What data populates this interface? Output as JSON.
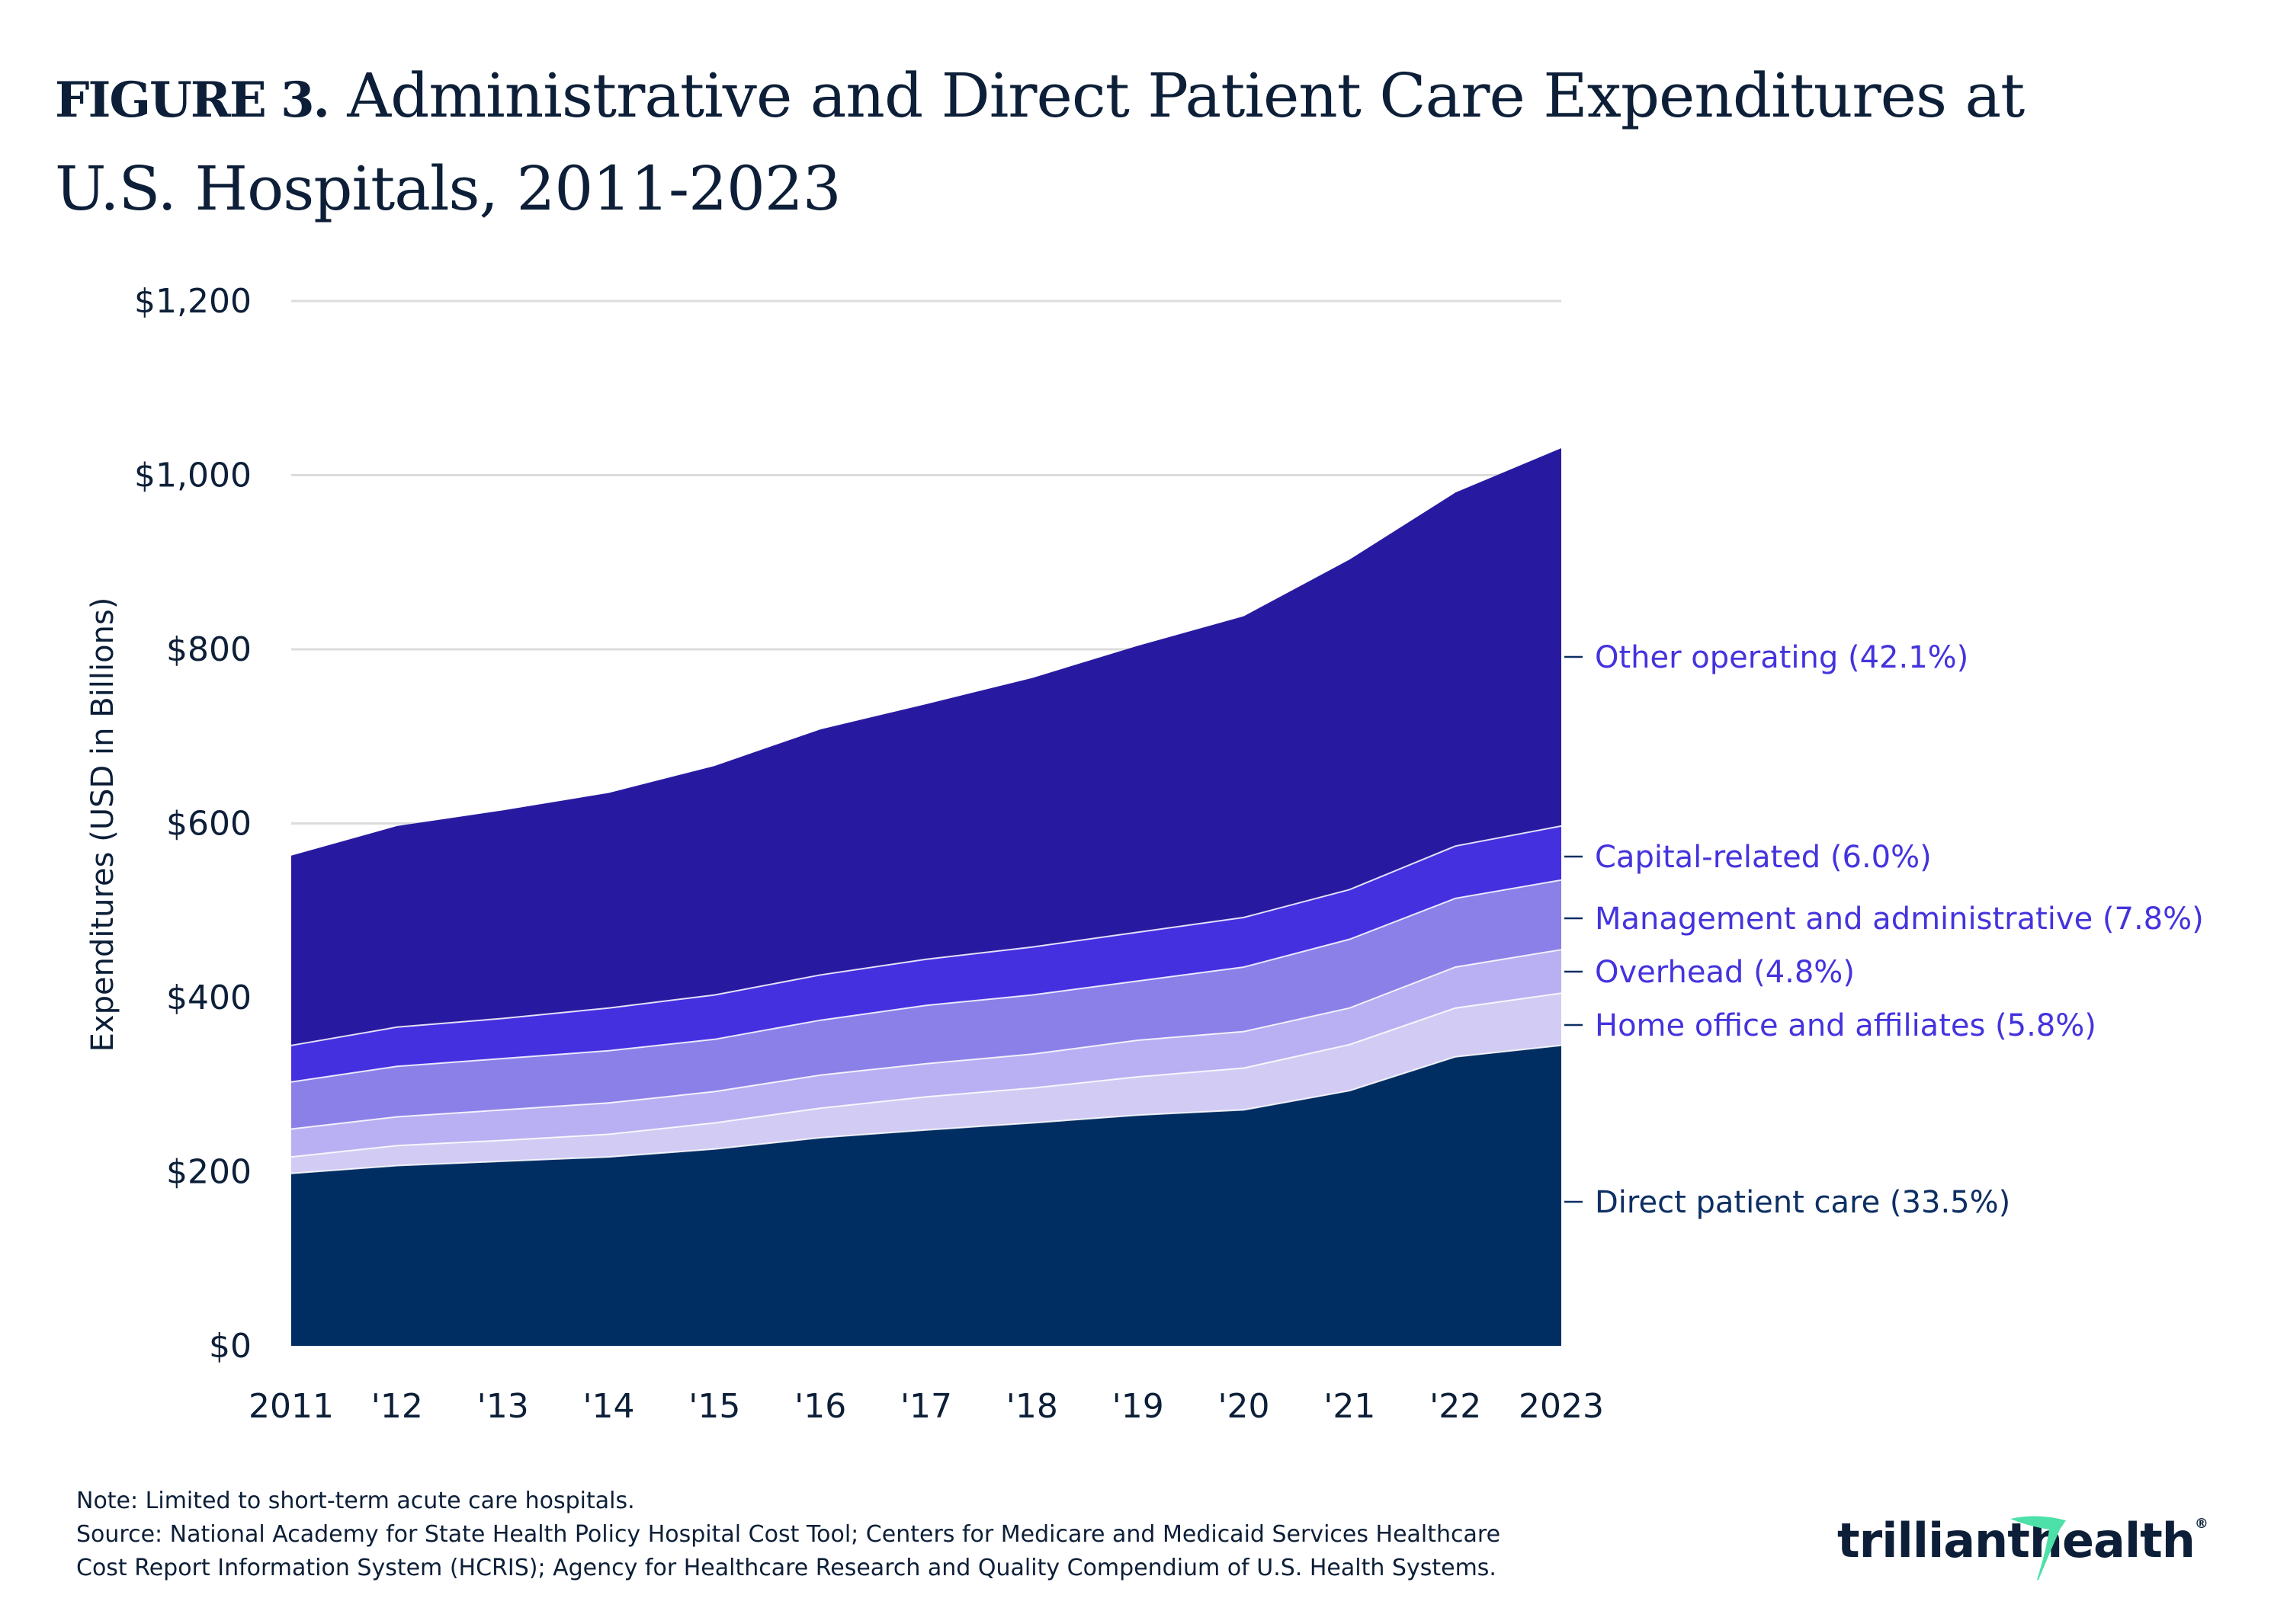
{
  "title": {
    "figure_label": "FIGURE 3.",
    "line1": " Administrative and Direct Patient Care Expenditures at",
    "line2": "U.S. Hospitals, 2011-2023"
  },
  "chart_data": {
    "type": "area",
    "stacked": true,
    "title": "Administrative and Direct Patient Care Expenditures at U.S. Hospitals, 2011-2023",
    "xlabel": "",
    "ylabel": "Expenditures (USD in Billions)",
    "ylim": [
      0,
      1200
    ],
    "yticks": [
      0,
      200,
      400,
      600,
      800,
      1000,
      1200
    ],
    "ytick_labels": [
      "$0",
      "$200",
      "$400",
      "$600",
      "$800",
      "$1,000",
      "$1,200"
    ],
    "categories": [
      "2011",
      "'12",
      "'13",
      "'14",
      "'15",
      "'16",
      "'17",
      "'18",
      "'19",
      "'20",
      "'21",
      "'22",
      "2023"
    ],
    "grid": true,
    "legend": "right (inline labels at series end)",
    "series": [
      {
        "name": "Direct patient care",
        "share_label": "Direct patient care (33.5%)",
        "color": "#002d62",
        "label_color": "#0d2f63",
        "values": [
          198,
          207,
          212,
          217,
          226,
          239,
          248,
          256,
          265,
          271,
          293,
          332,
          345
        ]
      },
      {
        "name": "Home office and affiliates",
        "share_label": "Home office and affiliates (5.8%)",
        "color": "#d2ccf4",
        "label_color": "#4433dd",
        "values": [
          19,
          23,
          24,
          26,
          30,
          34,
          38,
          40,
          44,
          48,
          53,
          56,
          60
        ]
      },
      {
        "name": "Overhead",
        "share_label": "Overhead (4.8%)",
        "color": "#b8b0f2",
        "label_color": "#4433dd",
        "values": [
          32,
          33,
          35,
          36,
          36,
          38,
          38,
          39,
          42,
          42,
          42,
          47,
          50
        ]
      },
      {
        "name": "Management and administrative",
        "share_label": "Management and administrative (7.8%)",
        "color": "#8b80e8",
        "label_color": "#4433dd",
        "values": [
          54,
          58,
          59,
          60,
          60,
          63,
          67,
          68,
          68,
          74,
          79,
          79,
          80
        ]
      },
      {
        "name": "Capital-related",
        "share_label": "Capital-related (6.0%)",
        "color": "#4530e0",
        "label_color": "#4433dd",
        "values": [
          42,
          45,
          46,
          49,
          51,
          52,
          53,
          55,
          56,
          57,
          57,
          60,
          62
        ]
      },
      {
        "name": "Other operating",
        "share_label": "Other operating (42.1%)",
        "color": "#281aa0",
        "label_color": "#4433dd",
        "values": [
          218,
          231,
          239,
          247,
          263,
          282,
          293,
          309,
          329,
          346,
          379,
          406,
          434
        ]
      }
    ]
  },
  "notes": {
    "note": "Note: Limited to short-term acute care hospitals.",
    "source_line1": "Source: National Academy for State Health Policy Hospital Cost Tool; Centers for Medicare and Medicaid Services Healthcare",
    "source_line2": "Cost Report Information System (HCRIS); Agency for Healthcare Research and Quality Compendium of U.S. Health Systems."
  },
  "logo": {
    "part1": "trilliant",
    "part2": "health",
    "mark": "®",
    "accent_color": "#4de0a8"
  }
}
